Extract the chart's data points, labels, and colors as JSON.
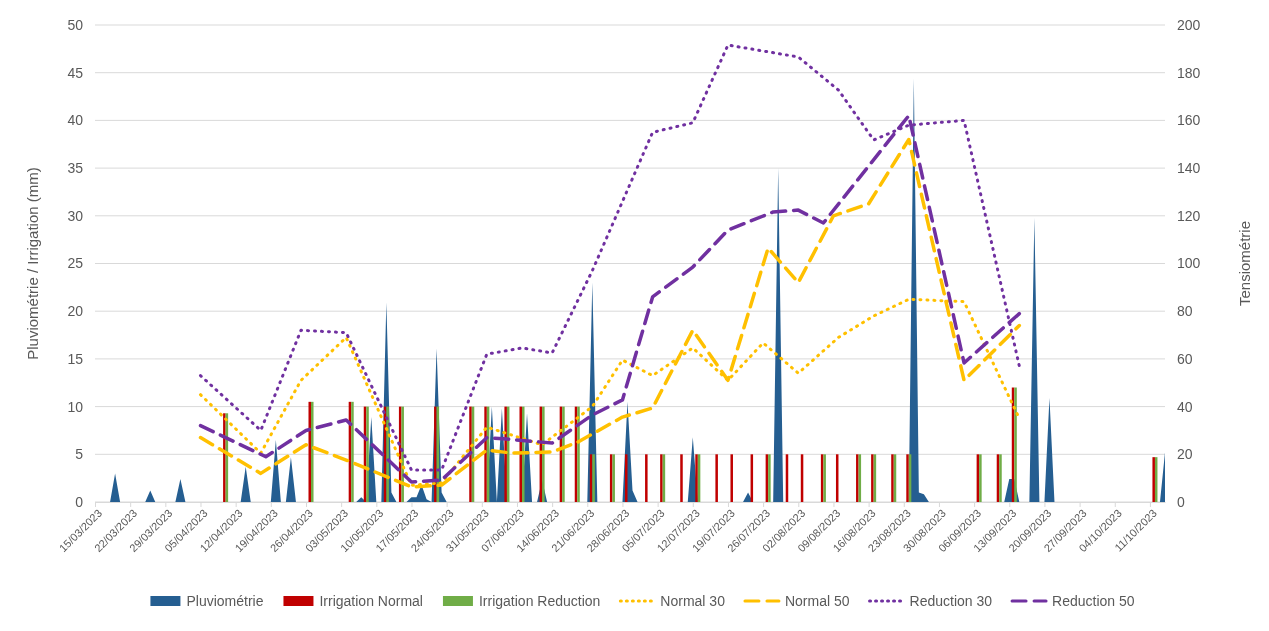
{
  "chart_data": {
    "type": "bar",
    "ylabel": "Pluviométrie / Irrigation (mm)",
    "y2label": "Tensiométrie",
    "xlim": [
      "2023-03-15",
      "2023-10-14"
    ],
    "xticks": [
      {
        "value": "2023-03-15",
        "label": "15/03/2023"
      },
      {
        "value": "2023-03-22",
        "label": "22/03/2023"
      },
      {
        "value": "2023-03-29",
        "label": "29/03/2023"
      },
      {
        "value": "2023-04-05",
        "label": "05/04/2023"
      },
      {
        "value": "2023-04-12",
        "label": "12/04/2023"
      },
      {
        "value": "2023-04-19",
        "label": "19/04/2023"
      },
      {
        "value": "2023-04-26",
        "label": "26/04/2023"
      },
      {
        "value": "2023-05-03",
        "label": "03/05/2023"
      },
      {
        "value": "2023-05-10",
        "label": "10/05/2023"
      },
      {
        "value": "2023-05-17",
        "label": "17/05/2023"
      },
      {
        "value": "2023-05-24",
        "label": "24/05/2023"
      },
      {
        "value": "2023-05-31",
        "label": "31/05/2023"
      },
      {
        "value": "2023-06-07",
        "label": "07/06/2023"
      },
      {
        "value": "2023-06-14",
        "label": "14/06/2023"
      },
      {
        "value": "2023-06-21",
        "label": "21/06/2023"
      },
      {
        "value": "2023-06-28",
        "label": "28/06/2023"
      },
      {
        "value": "2023-07-05",
        "label": "05/07/2023"
      },
      {
        "value": "2023-07-12",
        "label": "12/07/2023"
      },
      {
        "value": "2023-07-19",
        "label": "19/07/2023"
      },
      {
        "value": "2023-07-26",
        "label": "26/07/2023"
      },
      {
        "value": "2023-08-02",
        "label": "02/08/2023"
      },
      {
        "value": "2023-08-09",
        "label": "09/08/2023"
      },
      {
        "value": "2023-08-16",
        "label": "16/08/2023"
      },
      {
        "value": "2023-08-23",
        "label": "23/08/2023"
      },
      {
        "value": "2023-08-30",
        "label": "30/08/2023"
      },
      {
        "value": "2023-09-06",
        "label": "06/09/2023"
      },
      {
        "value": "2023-09-13",
        "label": "13/09/2023"
      },
      {
        "value": "2023-09-20",
        "label": "20/09/2023"
      },
      {
        "value": "2023-09-27",
        "label": "27/09/2023"
      },
      {
        "value": "2023-10-04",
        "label": "04/10/2023"
      },
      {
        "value": "2023-10-11",
        "label": "11/10/2023"
      }
    ],
    "ylim": [
      0,
      50
    ],
    "yticks": [
      0,
      5,
      10,
      15,
      20,
      25,
      30,
      35,
      40,
      45,
      50
    ],
    "y2lim": [
      0,
      200
    ],
    "y2ticks": [
      0,
      20,
      40,
      60,
      80,
      100,
      120,
      140,
      160,
      180,
      200
    ],
    "grid": "y",
    "legend": "bottom",
    "marker": "none",
    "series": [
      {
        "name": "Pluviométrie",
        "type": "area",
        "color": "#255e91",
        "x": [
          "2023-03-15",
          "2023-03-18",
          "2023-03-19",
          "2023-03-20",
          "2023-03-25",
          "2023-03-26",
          "2023-03-27",
          "2023-03-31",
          "2023-04-01",
          "2023-04-02",
          "2023-04-13",
          "2023-04-14",
          "2023-04-15",
          "2023-04-19",
          "2023-04-20",
          "2023-04-21",
          "2023-04-22",
          "2023-04-23",
          "2023-04-24",
          "2023-05-06",
          "2023-05-07",
          "2023-05-08",
          "2023-05-09",
          "2023-05-10",
          "2023-05-11",
          "2023-05-12",
          "2023-05-13",
          "2023-05-14",
          "2023-05-16",
          "2023-05-17",
          "2023-05-18",
          "2023-05-19",
          "2023-05-20",
          "2023-05-21",
          "2023-05-22",
          "2023-05-23",
          "2023-05-24",
          "2023-06-01",
          "2023-06-02",
          "2023-06-03",
          "2023-06-04",
          "2023-06-05",
          "2023-06-08",
          "2023-06-09",
          "2023-06-10",
          "2023-06-11",
          "2023-06-12",
          "2023-06-13",
          "2023-06-21",
          "2023-06-22",
          "2023-06-23",
          "2023-06-28",
          "2023-06-29",
          "2023-06-30",
          "2023-07-01",
          "2023-07-11",
          "2023-07-12",
          "2023-07-13",
          "2023-07-22",
          "2023-07-23",
          "2023-07-24",
          "2023-07-28",
          "2023-07-29",
          "2023-07-30",
          "2023-08-24",
          "2023-08-25",
          "2023-08-26",
          "2023-08-27",
          "2023-08-28",
          "2023-09-12",
          "2023-09-13",
          "2023-09-14",
          "2023-09-15",
          "2023-09-17",
          "2023-09-18",
          "2023-09-19",
          "2023-09-20",
          "2023-09-21",
          "2023-09-22",
          "2023-10-13",
          "2023-10-14"
        ],
        "values": [
          0,
          0,
          3.0,
          0,
          0,
          1.2,
          0,
          0,
          2.4,
          0,
          0,
          3.7,
          0,
          0,
          6.5,
          0,
          0,
          4.7,
          0,
          0,
          0.5,
          0,
          8.9,
          0,
          0,
          20.9,
          1,
          0,
          0,
          0.5,
          0.5,
          1.8,
          0.3,
          0,
          16.1,
          1,
          0,
          0,
          10,
          0,
          9.8,
          0,
          0,
          9.3,
          0,
          0,
          2.3,
          0,
          0,
          23,
          0,
          0,
          10.5,
          1.2,
          0,
          0,
          6.8,
          0,
          0,
          1.0,
          0,
          0,
          35,
          0,
          0,
          44.4,
          1,
          0.8,
          0,
          0,
          2.4,
          2.4,
          0,
          0,
          29.8,
          0,
          0,
          10.9,
          0,
          0,
          5.2
        ]
      },
      {
        "name": "Irrigation Normal",
        "color": "#c00000",
        "x": [
          "2023-04-10",
          "2023-04-27",
          "2023-05-05",
          "2023-05-08",
          "2023-05-12",
          "2023-05-15",
          "2023-05-22",
          "2023-05-29",
          "2023-06-01",
          "2023-06-05",
          "2023-06-08",
          "2023-06-12",
          "2023-06-16",
          "2023-06-19",
          "2023-06-22",
          "2023-06-26",
          "2023-06-29",
          "2023-07-03",
          "2023-07-06",
          "2023-07-10",
          "2023-07-13",
          "2023-07-17",
          "2023-07-20",
          "2023-07-24",
          "2023-07-27",
          "2023-07-31",
          "2023-08-03",
          "2023-08-07",
          "2023-08-10",
          "2023-08-14",
          "2023-08-17",
          "2023-08-21",
          "2023-08-24",
          "2023-09-07",
          "2023-09-11",
          "2023-09-14",
          "2023-10-12"
        ],
        "values": [
          9.3,
          10.5,
          10.5,
          10,
          10,
          10,
          10,
          10,
          10,
          10,
          10,
          10,
          10,
          10,
          5,
          5,
          5,
          5,
          5,
          5,
          5,
          5,
          5,
          5,
          5,
          5,
          5,
          5,
          5,
          5,
          5,
          5,
          5,
          5,
          5,
          12,
          4.7
        ]
      },
      {
        "name": "Irrigation Reduction",
        "color": "#70ad47",
        "x": [
          "2023-04-10",
          "2023-04-27",
          "2023-05-05",
          "2023-05-08",
          "2023-05-12",
          "2023-05-15",
          "2023-05-22",
          "2023-05-29",
          "2023-06-01",
          "2023-06-05",
          "2023-06-08",
          "2023-06-12",
          "2023-06-16",
          "2023-06-19",
          "2023-06-22",
          "2023-06-26",
          "2023-06-29",
          "2023-07-03",
          "2023-07-06",
          "2023-07-10",
          "2023-07-13",
          "2023-07-17",
          "2023-07-20",
          "2023-07-24",
          "2023-07-27",
          "2023-07-31",
          "2023-08-03",
          "2023-08-07",
          "2023-08-10",
          "2023-08-14",
          "2023-08-17",
          "2023-08-21",
          "2023-08-24",
          "2023-09-07",
          "2023-09-11",
          "2023-09-14",
          "2023-10-12"
        ],
        "values": [
          9.3,
          10.5,
          10.5,
          10,
          10,
          10,
          10,
          10,
          10,
          10,
          10,
          10,
          10,
          10,
          5,
          5,
          null,
          null,
          5,
          null,
          5,
          null,
          null,
          null,
          5,
          null,
          null,
          5,
          null,
          5,
          5,
          5,
          5,
          5,
          5,
          12,
          4.7
        ]
      },
      {
        "name": "Normal 30",
        "type": "line",
        "axis": "y2",
        "color": "#ffc000",
        "line_style": "dotted",
        "x": [
          "2023-04-05",
          "2023-04-17",
          "2023-04-25",
          "2023-05-04",
          "2023-05-17",
          "2023-05-23",
          "2023-06-01",
          "2023-06-12",
          "2023-06-22",
          "2023-06-28",
          "2023-07-04",
          "2023-07-12",
          "2023-07-19",
          "2023-07-26",
          "2023-08-02",
          "2023-08-10",
          "2023-08-17",
          "2023-08-24",
          "2023-09-04",
          "2023-09-15"
        ],
        "values": [
          45,
          20.5,
          51,
          69,
          7,
          8,
          31.4,
          24,
          40,
          59.5,
          53,
          64.6,
          51,
          66.7,
          54,
          69,
          78,
          85,
          84,
          35
        ]
      },
      {
        "name": "Normal 50",
        "type": "line",
        "axis": "y2",
        "color": "#ffc000",
        "line_style": "dashed",
        "x": [
          "2023-04-05",
          "2023-04-17",
          "2023-04-26",
          "2023-05-04",
          "2023-05-17",
          "2023-05-23",
          "2023-06-01",
          "2023-06-06",
          "2023-06-14",
          "2023-06-19",
          "2023-06-28",
          "2023-07-04",
          "2023-07-12",
          "2023-07-19",
          "2023-07-27",
          "2023-08-02",
          "2023-08-09",
          "2023-08-16",
          "2023-08-24",
          "2023-09-04",
          "2023-09-15"
        ],
        "values": [
          27,
          12,
          24,
          17.6,
          6.3,
          7.1,
          21.8,
          20.5,
          21,
          25,
          35.6,
          39.4,
          72,
          51,
          106.5,
          92,
          120,
          125,
          152,
          51,
          74
        ]
      },
      {
        "name": "Reduction 30",
        "type": "line",
        "axis": "y2",
        "color": "#7030a0",
        "line_style": "dotted",
        "x": [
          "2023-04-05",
          "2023-04-17",
          "2023-04-25",
          "2023-05-04",
          "2023-05-17",
          "2023-05-23",
          "2023-06-01",
          "2023-06-08",
          "2023-06-14",
          "2023-06-22",
          "2023-07-04",
          "2023-07-12",
          "2023-07-19",
          "2023-08-02",
          "2023-08-10",
          "2023-08-17",
          "2023-08-24",
          "2023-09-04",
          "2023-09-15"
        ],
        "values": [
          53,
          30,
          72,
          71,
          13.4,
          13.4,
          62,
          64.6,
          62.5,
          97,
          155,
          159,
          191.6,
          186.6,
          172.7,
          151.8,
          158,
          160,
          57
        ]
      },
      {
        "name": "Reduction 50",
        "type": "line",
        "axis": "y2",
        "color": "#7030a0",
        "line_style": "dashed",
        "x": [
          "2023-04-05",
          "2023-04-18",
          "2023-04-26",
          "2023-05-04",
          "2023-05-17",
          "2023-05-23",
          "2023-06-01",
          "2023-06-05",
          "2023-06-14",
          "2023-06-22",
          "2023-06-28",
          "2023-07-04",
          "2023-07-12",
          "2023-07-19",
          "2023-07-28",
          "2023-08-02",
          "2023-08-07",
          "2023-08-24",
          "2023-09-04",
          "2023-09-15"
        ],
        "values": [
          32,
          19,
          30,
          34.4,
          8.4,
          9.2,
          27,
          26.4,
          24.7,
          36.5,
          42.8,
          86,
          98.5,
          114,
          121.6,
          122.4,
          117,
          162,
          58.3,
          79
        ]
      }
    ]
  }
}
